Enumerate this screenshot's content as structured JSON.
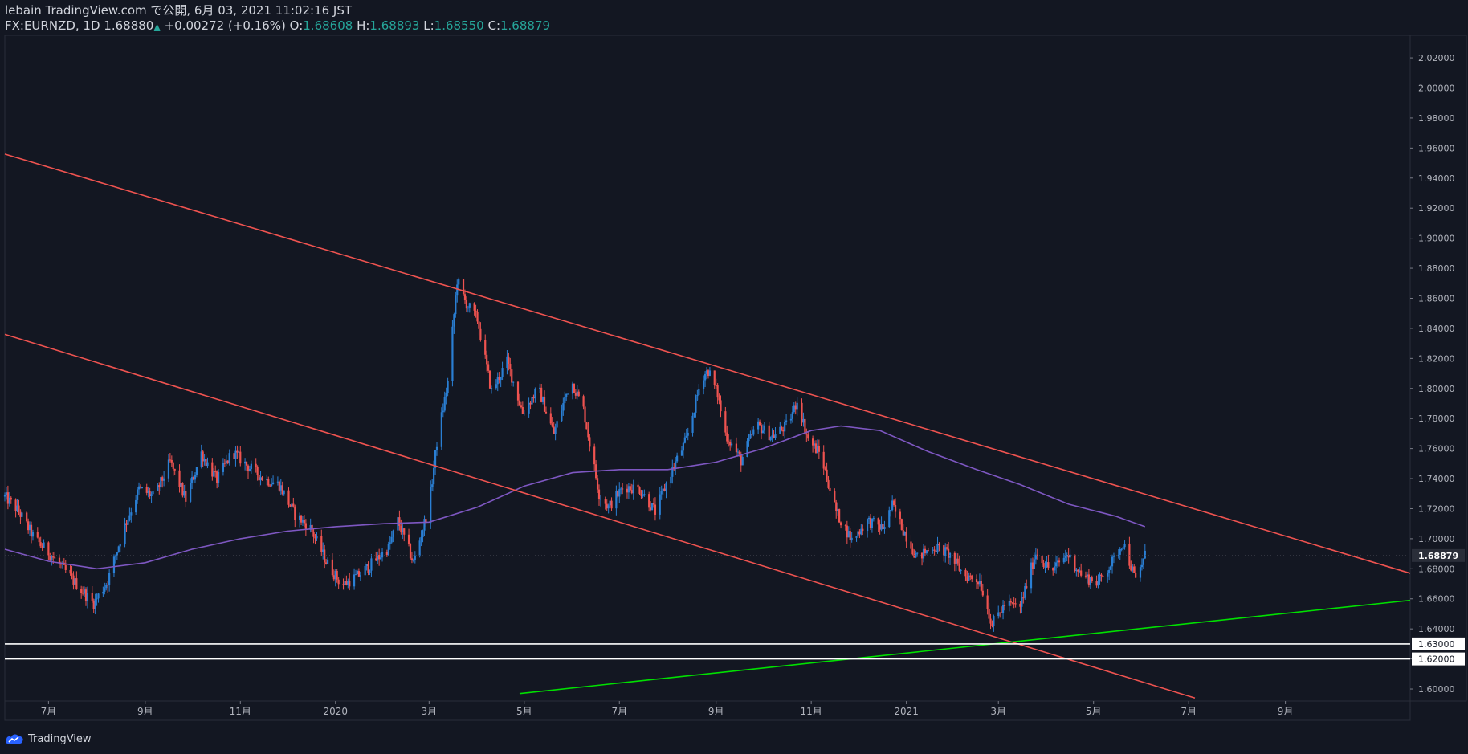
{
  "header": {
    "published": "lebain TradingView.com で公開, 6月 03, 2021 11:02:16 JST",
    "symbol": "FX:EURNZD, 1D",
    "last": "1.68880",
    "change": "+0.00272 (+0.16%)",
    "o_label": "O:",
    "o": "1.68608",
    "h_label": "H:",
    "h": "1.68893",
    "l_label": "L:",
    "l": "1.68550",
    "c_label": "C:",
    "c": "1.68879"
  },
  "brand": {
    "label": "TradingView",
    "icon": "tradingview-cloud-icon"
  },
  "colors": {
    "background": "#131722",
    "up_candle": "#2a7fd4",
    "down_candle": "#ef5350",
    "trendline": "#ef5350",
    "support_line": "#00e000",
    "horizontal_level": "#ffffff",
    "moving_average": "#7e57c2",
    "axis_text": "#b2b5be"
  },
  "chart_data": {
    "type": "candlestick",
    "symbol": "FX:EURNZD",
    "interval": "1D",
    "ylim": [
      1.592,
      2.035
    ],
    "price_ticks": [
      "1.60000",
      "1.62000",
      "1.64000",
      "1.66000",
      "1.68000",
      "1.70000",
      "1.72000",
      "1.74000",
      "1.76000",
      "1.78000",
      "1.80000",
      "1.82000",
      "1.84000",
      "1.86000",
      "1.88000",
      "1.90000",
      "1.92000",
      "1.94000",
      "1.96000",
      "1.98000",
      "2.00000",
      "2.02000"
    ],
    "current_price_label": "1.68879",
    "level_labels": [
      "1.63000",
      "1.62000"
    ],
    "xlim": [
      "2019-06-03",
      "2021-11-20"
    ],
    "time_ticks": [
      {
        "date": "2019-07-01",
        "label": "7月"
      },
      {
        "date": "2019-09-01",
        "label": "9月"
      },
      {
        "date": "2019-11-01",
        "label": "11月"
      },
      {
        "date": "2020-01-01",
        "label": "2020"
      },
      {
        "date": "2020-03-01",
        "label": "3月"
      },
      {
        "date": "2020-05-01",
        "label": "5月"
      },
      {
        "date": "2020-07-01",
        "label": "7月"
      },
      {
        "date": "2020-09-01",
        "label": "9月"
      },
      {
        "date": "2020-11-01",
        "label": "11月"
      },
      {
        "date": "2021-01-01",
        "label": "2021"
      },
      {
        "date": "2021-03-01",
        "label": "3月"
      },
      {
        "date": "2021-05-01",
        "label": "5月"
      },
      {
        "date": "2021-07-01",
        "label": "7月"
      },
      {
        "date": "2021-09-01",
        "label": "9月"
      }
    ],
    "approx_close_path": [
      [
        "2019-06-03",
        1.728
      ],
      [
        "2019-06-12",
        1.718
      ],
      [
        "2019-06-22",
        1.7
      ],
      [
        "2019-07-02",
        1.69
      ],
      [
        "2019-07-12",
        1.678
      ],
      [
        "2019-07-22",
        1.666
      ],
      [
        "2019-07-30",
        1.657
      ],
      [
        "2019-08-08",
        1.672
      ],
      [
        "2019-08-18",
        1.706
      ],
      [
        "2019-08-28",
        1.733
      ],
      [
        "2019-09-07",
        1.728
      ],
      [
        "2019-09-17",
        1.751
      ],
      [
        "2019-09-27",
        1.726
      ],
      [
        "2019-10-07",
        1.757
      ],
      [
        "2019-10-17",
        1.739
      ],
      [
        "2019-10-27",
        1.758
      ],
      [
        "2019-11-06",
        1.748
      ],
      [
        "2019-11-16",
        1.74
      ],
      [
        "2019-11-26",
        1.736
      ],
      [
        "2019-12-06",
        1.716
      ],
      [
        "2019-12-16",
        1.707
      ],
      [
        "2019-12-26",
        1.685
      ],
      [
        "2020-01-05",
        1.669
      ],
      [
        "2020-01-15",
        1.675
      ],
      [
        "2020-01-25",
        1.684
      ],
      [
        "2020-02-04",
        1.694
      ],
      [
        "2020-02-10",
        1.712
      ],
      [
        "2020-02-20",
        1.684
      ],
      [
        "2020-03-01",
        1.722
      ],
      [
        "2020-03-06",
        1.764
      ],
      [
        "2020-03-13",
        1.804
      ],
      [
        "2020-03-19",
        1.872
      ],
      [
        "2020-03-24",
        1.858
      ],
      [
        "2020-04-01",
        1.846
      ],
      [
        "2020-04-10",
        1.798
      ],
      [
        "2020-04-20",
        1.818
      ],
      [
        "2020-04-30",
        1.784
      ],
      [
        "2020-05-10",
        1.8
      ],
      [
        "2020-05-20",
        1.77
      ],
      [
        "2020-05-31",
        1.806
      ],
      [
        "2020-06-08",
        1.786
      ],
      [
        "2020-06-18",
        1.73
      ],
      [
        "2020-06-24",
        1.721
      ],
      [
        "2020-07-04",
        1.735
      ],
      [
        "2020-07-14",
        1.733
      ],
      [
        "2020-07-24",
        1.718
      ],
      [
        "2020-08-03",
        1.744
      ],
      [
        "2020-08-13",
        1.766
      ],
      [
        "2020-08-23",
        1.808
      ],
      [
        "2020-08-27",
        1.812
      ],
      [
        "2020-09-02",
        1.796
      ],
      [
        "2020-09-07",
        1.77
      ],
      [
        "2020-09-17",
        1.752
      ],
      [
        "2020-09-27",
        1.776
      ],
      [
        "2020-10-07",
        1.768
      ],
      [
        "2020-10-17",
        1.776
      ],
      [
        "2020-10-23",
        1.792
      ],
      [
        "2020-10-30",
        1.766
      ],
      [
        "2020-11-07",
        1.756
      ],
      [
        "2020-11-17",
        1.718
      ],
      [
        "2020-11-27",
        1.699
      ],
      [
        "2020-12-07",
        1.712
      ],
      [
        "2020-12-17",
        1.707
      ],
      [
        "2020-12-23",
        1.722
      ],
      [
        "2020-12-30",
        1.706
      ],
      [
        "2021-01-08",
        1.687
      ],
      [
        "2021-01-18",
        1.695
      ],
      [
        "2021-01-28",
        1.69
      ],
      [
        "2021-02-07",
        1.676
      ],
      [
        "2021-02-17",
        1.672
      ],
      [
        "2021-02-25",
        1.643
      ],
      [
        "2021-03-05",
        1.656
      ],
      [
        "2021-03-15",
        1.655
      ],
      [
        "2021-03-25",
        1.691
      ],
      [
        "2021-04-04",
        1.678
      ],
      [
        "2021-04-14",
        1.69
      ],
      [
        "2021-04-24",
        1.675
      ],
      [
        "2021-05-04",
        1.671
      ],
      [
        "2021-05-14",
        1.686
      ],
      [
        "2021-05-20",
        1.698
      ],
      [
        "2021-05-28",
        1.672
      ],
      [
        "2021-06-03",
        1.689
      ]
    ],
    "moving_average": [
      [
        "2019-06-03",
        1.693
      ],
      [
        "2019-07-01",
        1.685
      ],
      [
        "2019-08-01",
        1.68
      ],
      [
        "2019-09-01",
        1.684
      ],
      [
        "2019-10-01",
        1.693
      ],
      [
        "2019-11-01",
        1.7
      ],
      [
        "2019-12-01",
        1.705
      ],
      [
        "2020-01-01",
        1.708
      ],
      [
        "2020-02-01",
        1.71
      ],
      [
        "2020-03-01",
        1.711
      ],
      [
        "2020-04-01",
        1.721
      ],
      [
        "2020-05-01",
        1.735
      ],
      [
        "2020-06-01",
        1.744
      ],
      [
        "2020-07-01",
        1.746
      ],
      [
        "2020-08-01",
        1.746
      ],
      [
        "2020-09-01",
        1.751
      ],
      [
        "2020-10-01",
        1.76
      ],
      [
        "2020-11-01",
        1.772
      ],
      [
        "2020-11-20",
        1.775
      ],
      [
        "2020-12-15",
        1.772
      ],
      [
        "2021-01-15",
        1.758
      ],
      [
        "2021-02-15",
        1.746
      ],
      [
        "2021-03-15",
        1.736
      ],
      [
        "2021-04-15",
        1.723
      ],
      [
        "2021-05-15",
        1.715
      ],
      [
        "2021-06-03",
        1.708
      ]
    ],
    "drawings": {
      "upper_channel": {
        "start": [
          "2019-06-03",
          1.956
        ],
        "end": [
          "2021-11-20",
          1.677
        ]
      },
      "lower_channel": {
        "start": [
          "2019-06-03",
          1.836
        ],
        "end": [
          "2021-07-05",
          1.594
        ]
      },
      "support_line": {
        "start": [
          "2020-04-28",
          1.597
        ],
        "end": [
          "2021-11-20",
          1.659
        ]
      },
      "horizontal_levels": [
        1.63,
        1.62
      ]
    }
  }
}
